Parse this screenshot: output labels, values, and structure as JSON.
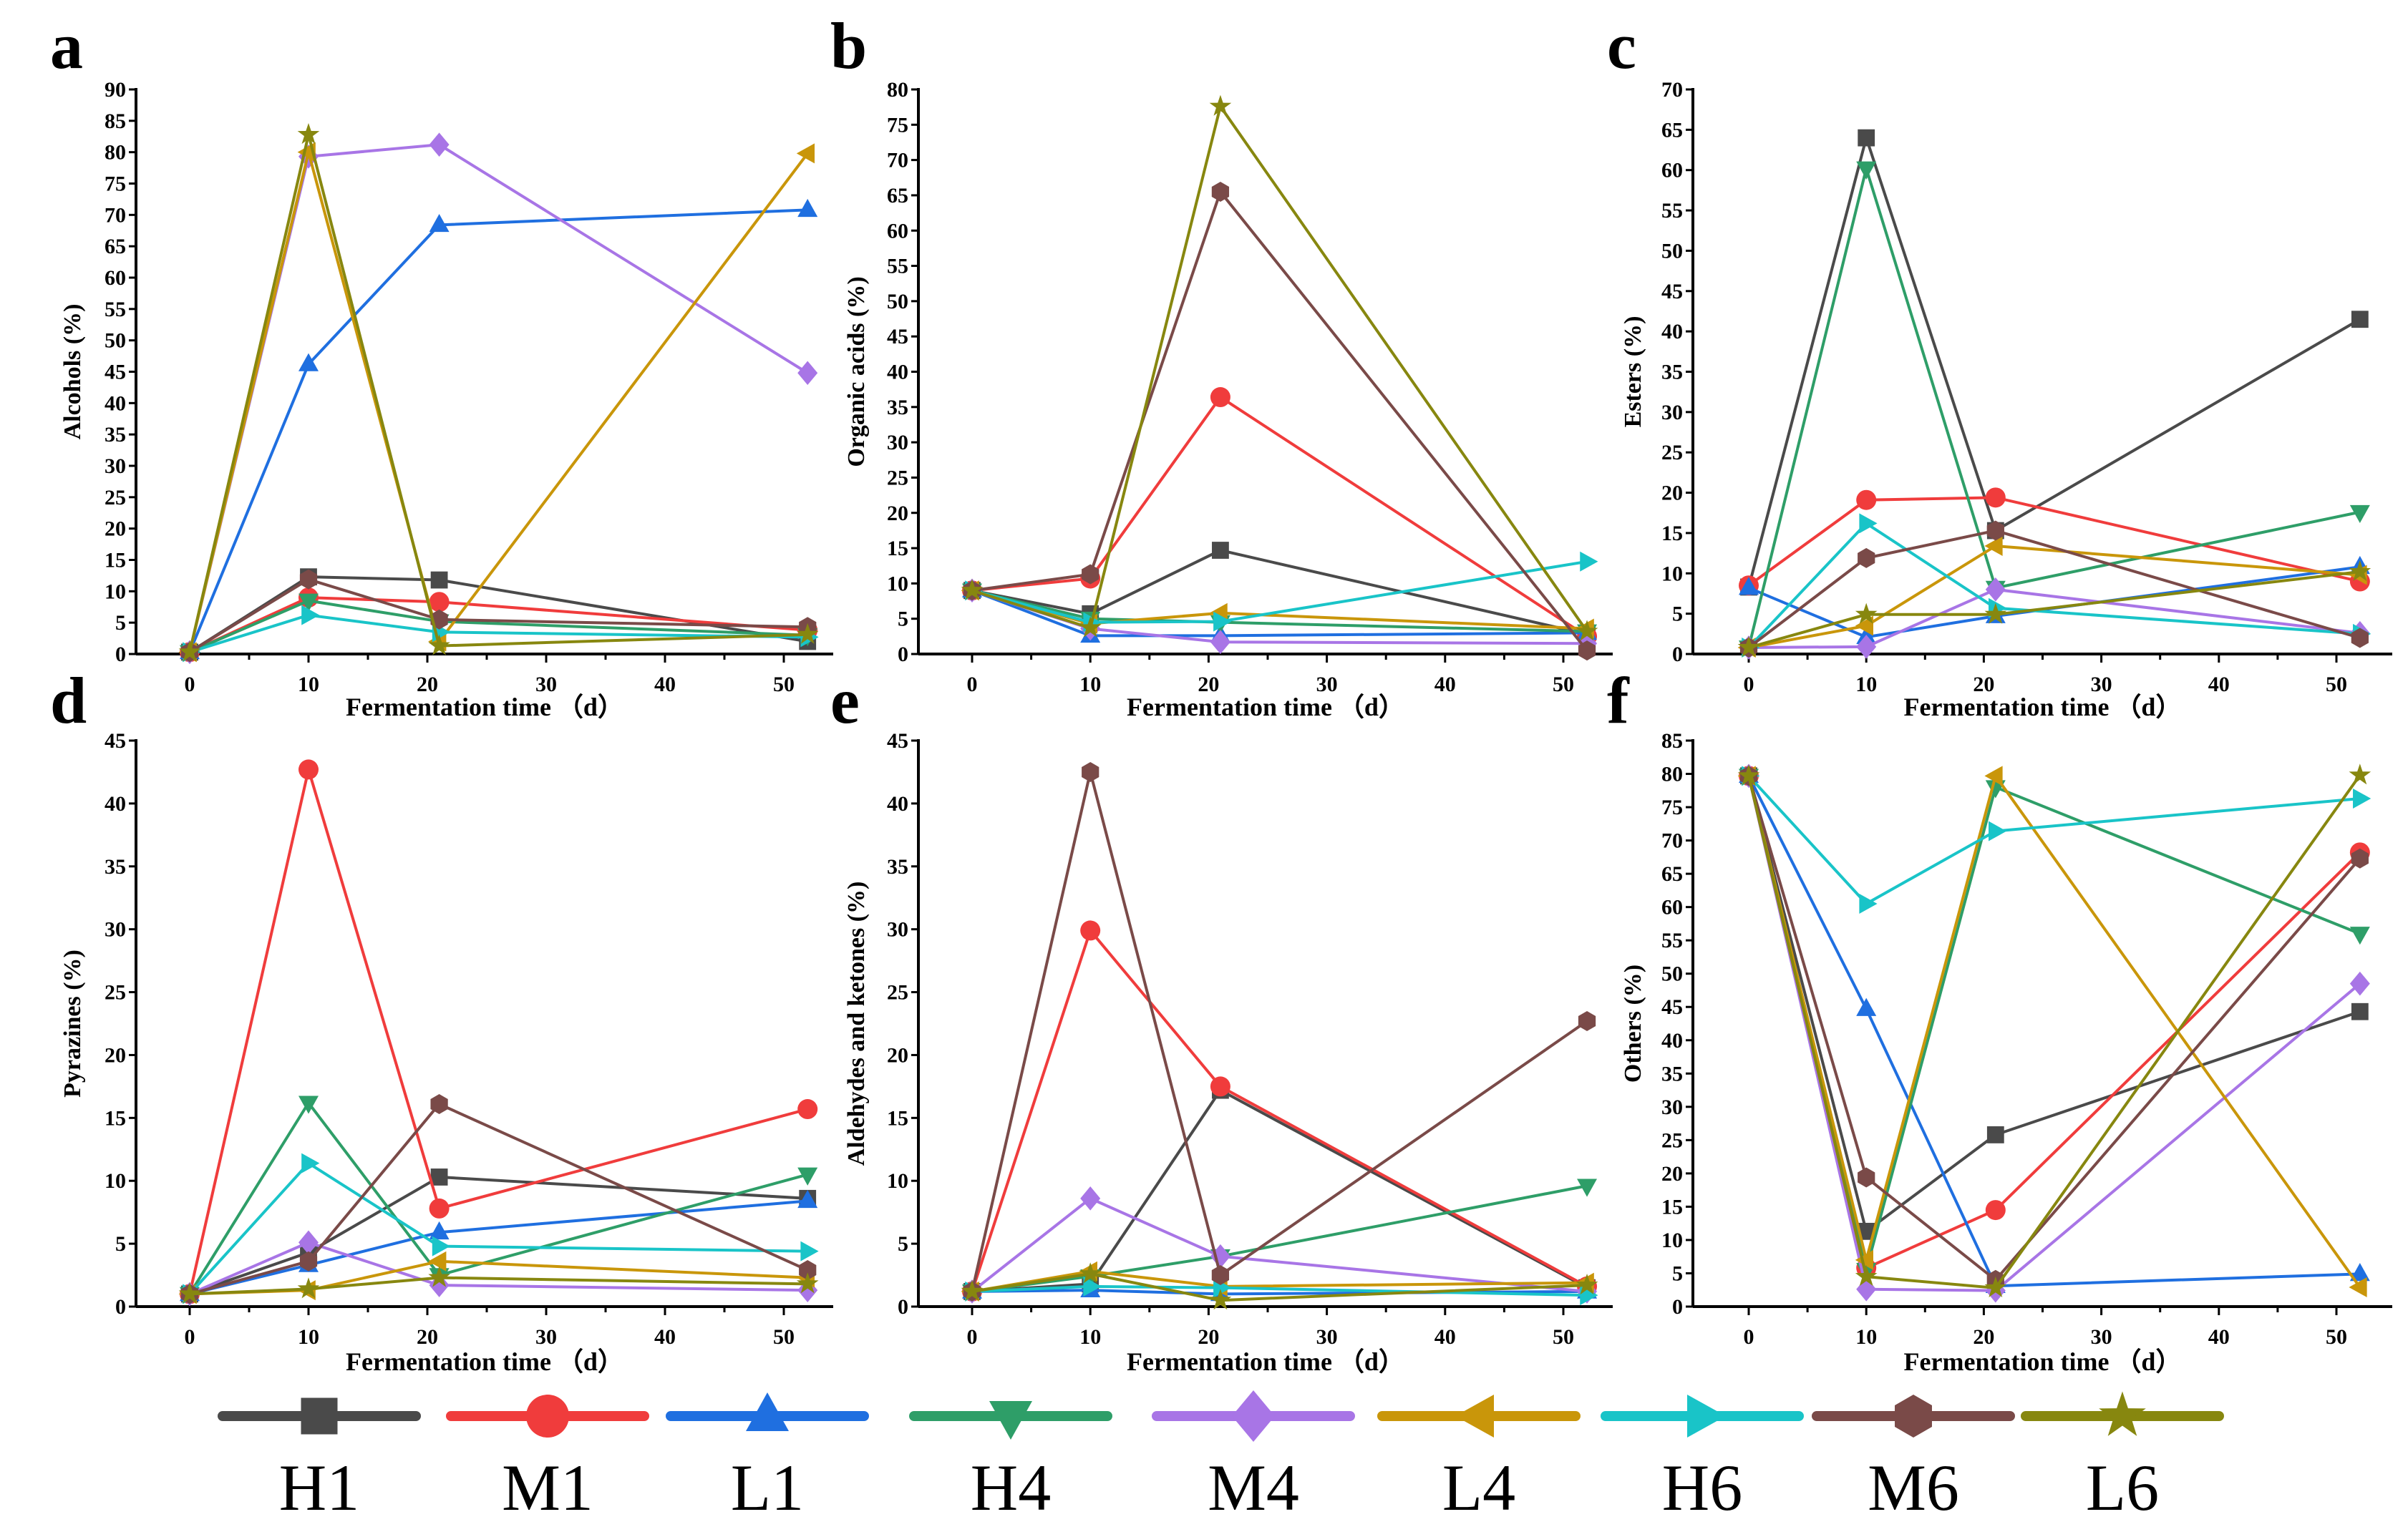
{
  "chart_data": [
    {
      "id": "a",
      "type": "line",
      "panel_label": "a",
      "ylabel": "Alcohols (%)",
      "xlabel": "Fermentation time （d）",
      "ylim": [
        0,
        90
      ],
      "yticks": [
        0,
        5,
        10,
        15,
        20,
        25,
        30,
        35,
        40,
        45,
        50,
        55,
        60,
        65,
        70,
        75,
        80,
        85,
        90
      ],
      "xticks": [
        0,
        10,
        20,
        30,
        40,
        50
      ],
      "x": [
        0,
        10,
        21,
        52
      ],
      "series": [
        {
          "name": "H1",
          "values": [
            0.3,
            12.3,
            11.8,
            2.0
          ]
        },
        {
          "name": "M1",
          "values": [
            0.3,
            9.0,
            8.3,
            3.8
          ]
        },
        {
          "name": "L1",
          "values": [
            0.3,
            46.2,
            68.4,
            70.8
          ]
        },
        {
          "name": "H4",
          "values": [
            0.3,
            8.5,
            5.2,
            3.0
          ]
        },
        {
          "name": "M4",
          "values": [
            0.3,
            79.3,
            81.2,
            44.8
          ]
        },
        {
          "name": "L4",
          "values": [
            0.3,
            80.0,
            2.0,
            79.8
          ]
        },
        {
          "name": "H6",
          "values": [
            0.3,
            6.2,
            3.5,
            2.7
          ]
        },
        {
          "name": "M6",
          "values": [
            0.3,
            11.9,
            5.5,
            4.3
          ]
        },
        {
          "name": "L6",
          "values": [
            0.3,
            82.8,
            1.3,
            3.1
          ]
        }
      ]
    },
    {
      "id": "b",
      "type": "line",
      "panel_label": "b",
      "ylabel": "Organic acids (%)",
      "xlabel": "Fermentation time （d）",
      "ylim": [
        0,
        80
      ],
      "yticks": [
        0,
        5,
        10,
        15,
        20,
        25,
        30,
        35,
        40,
        45,
        50,
        55,
        60,
        65,
        70,
        75,
        80
      ],
      "xticks": [
        0,
        10,
        20,
        30,
        40,
        50
      ],
      "x": [
        0,
        10,
        21,
        52
      ],
      "series": [
        {
          "name": "H1",
          "values": [
            9.0,
            5.7,
            14.7,
            2.8
          ]
        },
        {
          "name": "M1",
          "values": [
            9.0,
            10.7,
            36.4,
            2.5
          ]
        },
        {
          "name": "L1",
          "values": [
            9.0,
            2.6,
            2.6,
            3.0
          ]
        },
        {
          "name": "H4",
          "values": [
            9.0,
            5.0,
            4.5,
            3.2
          ]
        },
        {
          "name": "M4",
          "values": [
            9.0,
            3.6,
            1.7,
            1.5
          ]
        },
        {
          "name": "L4",
          "values": [
            9.0,
            4.3,
            5.8,
            3.6
          ]
        },
        {
          "name": "H6",
          "values": [
            9.0,
            4.5,
            4.6,
            13.1
          ]
        },
        {
          "name": "M6",
          "values": [
            9.0,
            11.3,
            65.5,
            0.5
          ]
        },
        {
          "name": "L6",
          "values": [
            9.0,
            3.7,
            77.6,
            3.2
          ]
        }
      ]
    },
    {
      "id": "c",
      "type": "line",
      "panel_label": "c",
      "ylabel": "Esters (%)",
      "xlabel": "Fermentation time （d）",
      "ylim": [
        0,
        70
      ],
      "yticks": [
        0,
        5,
        10,
        15,
        20,
        25,
        30,
        35,
        40,
        45,
        50,
        55,
        60,
        65,
        70
      ],
      "xticks": [
        0,
        10,
        20,
        30,
        40,
        50
      ],
      "x": [
        0,
        10,
        21,
        52
      ],
      "series": [
        {
          "name": "H1",
          "values": [
            8.3,
            64.0,
            15.3,
            41.5
          ]
        },
        {
          "name": "M1",
          "values": [
            8.5,
            19.1,
            19.4,
            9.0
          ]
        },
        {
          "name": "L1",
          "values": [
            8.2,
            2.1,
            4.7,
            10.8
          ]
        },
        {
          "name": "H4",
          "values": [
            0.8,
            60.2,
            8.2,
            17.6
          ]
        },
        {
          "name": "M4",
          "values": [
            0.8,
            0.9,
            8.0,
            2.6
          ]
        },
        {
          "name": "L4",
          "values": [
            0.8,
            3.5,
            13.4,
            9.8
          ]
        },
        {
          "name": "H6",
          "values": [
            0.8,
            16.2,
            5.7,
            2.5
          ]
        },
        {
          "name": "M6",
          "values": [
            0.8,
            11.9,
            15.3,
            2.0
          ]
        },
        {
          "name": "L6",
          "values": [
            0.8,
            4.9,
            4.9,
            10.2
          ]
        }
      ]
    },
    {
      "id": "d",
      "type": "line",
      "panel_label": "d",
      "ylabel": "Pyrazines (%)",
      "xlabel": "Fermentation time （d）",
      "ylim": [
        0,
        45
      ],
      "yticks": [
        0,
        5,
        10,
        15,
        20,
        25,
        30,
        35,
        40,
        45
      ],
      "xticks": [
        0,
        10,
        20,
        30,
        40,
        50
      ],
      "x": [
        0,
        10,
        21,
        52
      ],
      "series": [
        {
          "name": "H1",
          "values": [
            1.0,
            4.3,
            10.3,
            8.6
          ]
        },
        {
          "name": "M1",
          "values": [
            1.0,
            42.7,
            7.8,
            15.7
          ]
        },
        {
          "name": "L1",
          "values": [
            1.0,
            3.3,
            5.9,
            8.4
          ]
        },
        {
          "name": "H4",
          "values": [
            1.0,
            16.2,
            2.5,
            10.5
          ]
        },
        {
          "name": "M4",
          "values": [
            1.0,
            5.1,
            1.7,
            1.3
          ]
        },
        {
          "name": "L4",
          "values": [
            1.0,
            1.3,
            3.6,
            2.3
          ]
        },
        {
          "name": "H6",
          "values": [
            1.0,
            11.4,
            4.8,
            4.4
          ]
        },
        {
          "name": "M6",
          "values": [
            1.0,
            3.6,
            16.1,
            2.9
          ]
        },
        {
          "name": "L6",
          "values": [
            1.0,
            1.4,
            2.3,
            1.8
          ]
        }
      ]
    },
    {
      "id": "e",
      "type": "line",
      "panel_label": "e",
      "ylabel": "Aldehydes and ketones (%)",
      "xlabel": "Fermentation time （d）",
      "ylim": [
        0,
        45
      ],
      "yticks": [
        0,
        5,
        10,
        15,
        20,
        25,
        30,
        35,
        40,
        45
      ],
      "xticks": [
        0,
        10,
        20,
        30,
        40,
        50
      ],
      "x": [
        0,
        10,
        21,
        52
      ],
      "series": [
        {
          "name": "H1",
          "values": [
            1.2,
            1.8,
            17.2,
            1.5
          ]
        },
        {
          "name": "M1",
          "values": [
            1.2,
            29.9,
            17.5,
            1.6
          ]
        },
        {
          "name": "L1",
          "values": [
            1.2,
            1.3,
            1.0,
            1.2
          ]
        },
        {
          "name": "H4",
          "values": [
            1.2,
            2.4,
            4.0,
            9.6
          ]
        },
        {
          "name": "M4",
          "values": [
            1.2,
            8.6,
            4.0,
            1.2
          ]
        },
        {
          "name": "L4",
          "values": [
            1.2,
            2.8,
            1.6,
            1.9
          ]
        },
        {
          "name": "H6",
          "values": [
            1.2,
            1.6,
            1.5,
            0.9
          ]
        },
        {
          "name": "M6",
          "values": [
            1.2,
            42.5,
            2.5,
            22.7
          ]
        },
        {
          "name": "L6",
          "values": [
            1.2,
            2.6,
            0.5,
            1.7
          ]
        }
      ]
    },
    {
      "id": "f",
      "type": "line",
      "panel_label": "f",
      "ylabel": "Others (%)",
      "xlabel": "Fermentation time （d）",
      "ylim": [
        0,
        85
      ],
      "yticks": [
        0,
        5,
        10,
        15,
        20,
        25,
        30,
        35,
        40,
        45,
        50,
        55,
        60,
        65,
        70,
        75,
        80,
        85
      ],
      "xticks": [
        0,
        10,
        20,
        30,
        40,
        50
      ],
      "x": [
        0,
        10,
        21,
        52
      ],
      "series": [
        {
          "name": "H1",
          "values": [
            79.7,
            11.3,
            25.8,
            44.3
          ]
        },
        {
          "name": "M1",
          "values": [
            79.7,
            5.8,
            14.5,
            68.2
          ]
        },
        {
          "name": "L1",
          "values": [
            79.7,
            44.7,
            3.1,
            4.9
          ]
        },
        {
          "name": "H4",
          "values": [
            79.7,
            5.5,
            78.0,
            56.0
          ]
        },
        {
          "name": "M4",
          "values": [
            79.7,
            2.6,
            2.4,
            48.5
          ]
        },
        {
          "name": "L4",
          "values": [
            79.7,
            7.0,
            79.7,
            2.9
          ]
        },
        {
          "name": "H6",
          "values": [
            79.7,
            60.5,
            71.4,
            76.3
          ]
        },
        {
          "name": "M6",
          "values": [
            79.7,
            19.4,
            4.0,
            67.3
          ]
        },
        {
          "name": "L6",
          "values": [
            79.7,
            4.5,
            2.8,
            79.8
          ]
        }
      ]
    }
  ],
  "legend": [
    {
      "name": "H1",
      "color": "#4a4a4a",
      "marker": "square"
    },
    {
      "name": "M1",
      "color": "#f03c3c",
      "marker": "circle"
    },
    {
      "name": "L1",
      "color": "#1f6fe0",
      "marker": "triangle-up"
    },
    {
      "name": "H4",
      "color": "#2e9e68",
      "marker": "triangle-down"
    },
    {
      "name": "M4",
      "color": "#a875e6",
      "marker": "diamond"
    },
    {
      "name": "L4",
      "color": "#c9960a",
      "marker": "triangle-left"
    },
    {
      "name": "H6",
      "color": "#19c4c8",
      "marker": "triangle-right"
    },
    {
      "name": "M6",
      "color": "#7a4a48",
      "marker": "hexagon"
    },
    {
      "name": "L6",
      "color": "#87870f",
      "marker": "star"
    }
  ]
}
